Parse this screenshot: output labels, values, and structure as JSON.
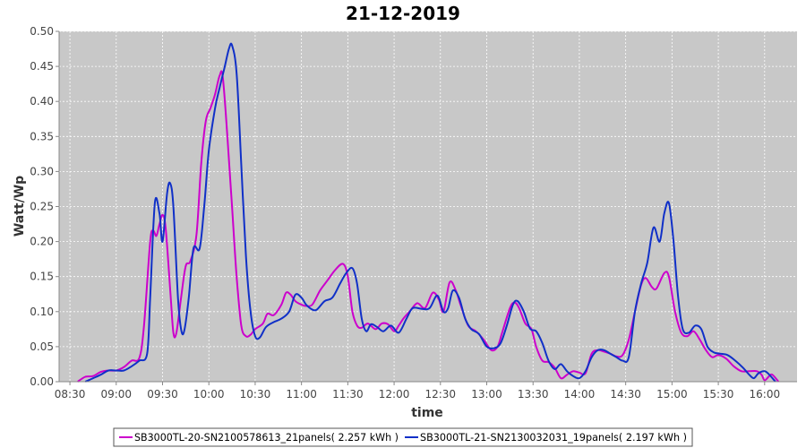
{
  "chart_data": {
    "type": "line",
    "title": "21-12-2019",
    "xlabel": "time",
    "ylabel": "Watt/Wp",
    "x_ticks": [
      "08:30",
      "09:00",
      "09:30",
      "10:00",
      "10:30",
      "11:00",
      "11:30",
      "12:00",
      "12:30",
      "13:00",
      "13:30",
      "14:00",
      "14:30",
      "15:00",
      "15:30",
      "16:00"
    ],
    "y_ticks": [
      "0.00",
      "0.05",
      "0.10",
      "0.15",
      "0.20",
      "0.25",
      "0.30",
      "0.35",
      "0.40",
      "0.45",
      "0.50"
    ],
    "xlim": [
      "08:23",
      "16:21"
    ],
    "ylim": [
      0,
      0.5
    ],
    "grid": true,
    "legend_position": "bottom",
    "series": [
      {
        "name": "SB3000TL-20-SN2100578613_21panels( 2.257 kWh )",
        "color": "#cc00cc",
        "points": [
          [
            "08:35",
            0.0
          ],
          [
            "08:40",
            0.007
          ],
          [
            "08:45",
            0.008
          ],
          [
            "08:50",
            0.014
          ],
          [
            "08:55",
            0.016
          ],
          [
            "09:00",
            0.016
          ],
          [
            "09:05",
            0.021
          ],
          [
            "09:10",
            0.03
          ],
          [
            "09:15",
            0.034
          ],
          [
            "09:18",
            0.08
          ],
          [
            "09:22",
            0.2
          ],
          [
            "09:24",
            0.215
          ],
          [
            "09:26",
            0.208
          ],
          [
            "09:28",
            0.225
          ],
          [
            "09:30",
            0.238
          ],
          [
            "09:32",
            0.22
          ],
          [
            "09:35",
            0.13
          ],
          [
            "09:37",
            0.07
          ],
          [
            "09:39",
            0.07
          ],
          [
            "09:42",
            0.12
          ],
          [
            "09:45",
            0.165
          ],
          [
            "09:48",
            0.172
          ],
          [
            "09:52",
            0.21
          ],
          [
            "09:55",
            0.31
          ],
          [
            "09:58",
            0.372
          ],
          [
            "10:01",
            0.39
          ],
          [
            "10:04",
            0.41
          ],
          [
            "10:07",
            0.437
          ],
          [
            "10:09",
            0.435
          ],
          [
            "10:12",
            0.35
          ],
          [
            "10:15",
            0.25
          ],
          [
            "10:18",
            0.15
          ],
          [
            "10:21",
            0.08
          ],
          [
            "10:24",
            0.065
          ],
          [
            "10:27",
            0.067
          ],
          [
            "10:30",
            0.075
          ],
          [
            "10:35",
            0.083
          ],
          [
            "10:38",
            0.097
          ],
          [
            "10:42",
            0.095
          ],
          [
            "10:47",
            0.11
          ],
          [
            "10:50",
            0.127
          ],
          [
            "10:53",
            0.124
          ],
          [
            "10:56",
            0.115
          ],
          [
            "11:00",
            0.11
          ],
          [
            "11:03",
            0.108
          ],
          [
            "11:07",
            0.11
          ],
          [
            "11:12",
            0.13
          ],
          [
            "11:17",
            0.145
          ],
          [
            "11:22",
            0.16
          ],
          [
            "11:27",
            0.168
          ],
          [
            "11:30",
            0.15
          ],
          [
            "11:33",
            0.1
          ],
          [
            "11:36",
            0.08
          ],
          [
            "11:39",
            0.077
          ],
          [
            "11:43",
            0.083
          ],
          [
            "11:48",
            0.075
          ],
          [
            "11:52",
            0.083
          ],
          [
            "11:56",
            0.082
          ],
          [
            "12:00",
            0.072
          ],
          [
            "12:03",
            0.08
          ],
          [
            "12:06",
            0.09
          ],
          [
            "12:10",
            0.1
          ],
          [
            "12:15",
            0.112
          ],
          [
            "12:20",
            0.105
          ],
          [
            "12:25",
            0.127
          ],
          [
            "12:29",
            0.117
          ],
          [
            "12:32",
            0.1
          ],
          [
            "12:36",
            0.142
          ],
          [
            "12:40",
            0.13
          ],
          [
            "12:43",
            0.11
          ],
          [
            "12:48",
            0.08
          ],
          [
            "12:53",
            0.072
          ],
          [
            "12:58",
            0.06
          ],
          [
            "13:03",
            0.045
          ],
          [
            "13:07",
            0.05
          ],
          [
            "13:10",
            0.07
          ],
          [
            "13:15",
            0.105
          ],
          [
            "13:18",
            0.113
          ],
          [
            "13:21",
            0.105
          ],
          [
            "13:25",
            0.083
          ],
          [
            "13:29",
            0.075
          ],
          [
            "13:32",
            0.05
          ],
          [
            "13:36",
            0.03
          ],
          [
            "13:40",
            0.028
          ],
          [
            "13:44",
            0.02
          ],
          [
            "13:48",
            0.005
          ],
          [
            "13:52",
            0.01
          ],
          [
            "13:56",
            0.015
          ],
          [
            "14:00",
            0.013
          ],
          [
            "14:04",
            0.012
          ],
          [
            "14:08",
            0.04
          ],
          [
            "14:12",
            0.045
          ],
          [
            "14:16",
            0.043
          ],
          [
            "14:20",
            0.04
          ],
          [
            "14:24",
            0.036
          ],
          [
            "14:28",
            0.038
          ],
          [
            "14:32",
            0.06
          ],
          [
            "14:36",
            0.1
          ],
          [
            "14:40",
            0.138
          ],
          [
            "14:43",
            0.148
          ],
          [
            "14:47",
            0.135
          ],
          [
            "14:50",
            0.133
          ],
          [
            "14:55",
            0.155
          ],
          [
            "14:58",
            0.15
          ],
          [
            "15:02",
            0.1
          ],
          [
            "15:06",
            0.07
          ],
          [
            "15:10",
            0.065
          ],
          [
            "15:14",
            0.072
          ],
          [
            "15:18",
            0.06
          ],
          [
            "15:22",
            0.045
          ],
          [
            "15:26",
            0.035
          ],
          [
            "15:30",
            0.038
          ],
          [
            "15:35",
            0.033
          ],
          [
            "15:40",
            0.022
          ],
          [
            "15:45",
            0.015
          ],
          [
            "15:50",
            0.015
          ],
          [
            "15:55",
            0.015
          ],
          [
            "15:58",
            0.01
          ],
          [
            "16:00",
            0.002
          ],
          [
            "16:03",
            0.008
          ],
          [
            "16:05",
            0.01
          ],
          [
            "16:09",
            0.0
          ]
        ]
      },
      {
        "name": "SB3000TL-21-SN2130032031_19panels( 2.197 kWh )",
        "color": "#1030c8",
        "points": [
          [
            "08:40",
            0.0
          ],
          [
            "08:45",
            0.005
          ],
          [
            "08:50",
            0.01
          ],
          [
            "08:55",
            0.016
          ],
          [
            "09:00",
            0.016
          ],
          [
            "09:05",
            0.016
          ],
          [
            "09:10",
            0.022
          ],
          [
            "09:15",
            0.03
          ],
          [
            "09:20",
            0.04
          ],
          [
            "09:22",
            0.12
          ],
          [
            "09:25",
            0.255
          ],
          [
            "09:28",
            0.24
          ],
          [
            "09:30",
            0.2
          ],
          [
            "09:33",
            0.27
          ],
          [
            "09:35",
            0.283
          ],
          [
            "09:37",
            0.25
          ],
          [
            "09:40",
            0.12
          ],
          [
            "09:42",
            0.075
          ],
          [
            "09:44",
            0.072
          ],
          [
            "09:47",
            0.12
          ],
          [
            "09:50",
            0.19
          ],
          [
            "09:54",
            0.19
          ],
          [
            "09:57",
            0.25
          ],
          [
            "10:00",
            0.33
          ],
          [
            "10:04",
            0.39
          ],
          [
            "10:07",
            0.42
          ],
          [
            "10:10",
            0.447
          ],
          [
            "10:13",
            0.475
          ],
          [
            "10:15",
            0.48
          ],
          [
            "10:18",
            0.44
          ],
          [
            "10:21",
            0.31
          ],
          [
            "10:24",
            0.18
          ],
          [
            "10:27",
            0.1
          ],
          [
            "10:30",
            0.065
          ],
          [
            "10:33",
            0.063
          ],
          [
            "10:37",
            0.078
          ],
          [
            "10:42",
            0.085
          ],
          [
            "10:47",
            0.09
          ],
          [
            "10:52",
            0.1
          ],
          [
            "10:56",
            0.124
          ],
          [
            "11:00",
            0.12
          ],
          [
            "11:03",
            0.11
          ],
          [
            "11:07",
            0.103
          ],
          [
            "11:10",
            0.103
          ],
          [
            "11:15",
            0.115
          ],
          [
            "11:20",
            0.12
          ],
          [
            "11:25",
            0.14
          ],
          [
            "11:29",
            0.155
          ],
          [
            "11:33",
            0.162
          ],
          [
            "11:36",
            0.14
          ],
          [
            "11:39",
            0.09
          ],
          [
            "11:42",
            0.072
          ],
          [
            "11:45",
            0.082
          ],
          [
            "11:49",
            0.078
          ],
          [
            "11:53",
            0.072
          ],
          [
            "11:58",
            0.08
          ],
          [
            "12:03",
            0.07
          ],
          [
            "12:08",
            0.09
          ],
          [
            "12:12",
            0.105
          ],
          [
            "12:18",
            0.104
          ],
          [
            "12:23",
            0.105
          ],
          [
            "12:28",
            0.123
          ],
          [
            "12:32",
            0.1
          ],
          [
            "12:35",
            0.105
          ],
          [
            "12:38",
            0.13
          ],
          [
            "12:42",
            0.12
          ],
          [
            "12:46",
            0.09
          ],
          [
            "12:50",
            0.075
          ],
          [
            "12:55",
            0.068
          ],
          [
            "13:00",
            0.05
          ],
          [
            "13:05",
            0.048
          ],
          [
            "13:09",
            0.055
          ],
          [
            "13:13",
            0.08
          ],
          [
            "13:17",
            0.11
          ],
          [
            "13:20",
            0.115
          ],
          [
            "13:24",
            0.1
          ],
          [
            "13:28",
            0.076
          ],
          [
            "13:32",
            0.072
          ],
          [
            "13:36",
            0.055
          ],
          [
            "13:40",
            0.03
          ],
          [
            "13:44",
            0.018
          ],
          [
            "13:48",
            0.025
          ],
          [
            "13:52",
            0.015
          ],
          [
            "13:56",
            0.008
          ],
          [
            "14:00",
            0.005
          ],
          [
            "14:04",
            0.015
          ],
          [
            "14:08",
            0.035
          ],
          [
            "14:12",
            0.045
          ],
          [
            "14:16",
            0.045
          ],
          [
            "14:20",
            0.04
          ],
          [
            "14:24",
            0.035
          ],
          [
            "14:28",
            0.03
          ],
          [
            "14:32",
            0.035
          ],
          [
            "14:36",
            0.1
          ],
          [
            "14:40",
            0.14
          ],
          [
            "14:44",
            0.17
          ],
          [
            "14:48",
            0.22
          ],
          [
            "14:52",
            0.2
          ],
          [
            "14:55",
            0.24
          ],
          [
            "14:58",
            0.255
          ],
          [
            "15:01",
            0.2
          ],
          [
            "15:04",
            0.12
          ],
          [
            "15:07",
            0.075
          ],
          [
            "15:11",
            0.07
          ],
          [
            "15:15",
            0.08
          ],
          [
            "15:19",
            0.075
          ],
          [
            "15:23",
            0.05
          ],
          [
            "15:27",
            0.042
          ],
          [
            "15:31",
            0.04
          ],
          [
            "15:36",
            0.038
          ],
          [
            "15:41",
            0.03
          ],
          [
            "15:46",
            0.02
          ],
          [
            "15:50",
            0.01
          ],
          [
            "15:53",
            0.005
          ],
          [
            "15:56",
            0.012
          ],
          [
            "16:00",
            0.015
          ],
          [
            "16:03",
            0.01
          ],
          [
            "16:07",
            0.0
          ]
        ]
      }
    ]
  }
}
